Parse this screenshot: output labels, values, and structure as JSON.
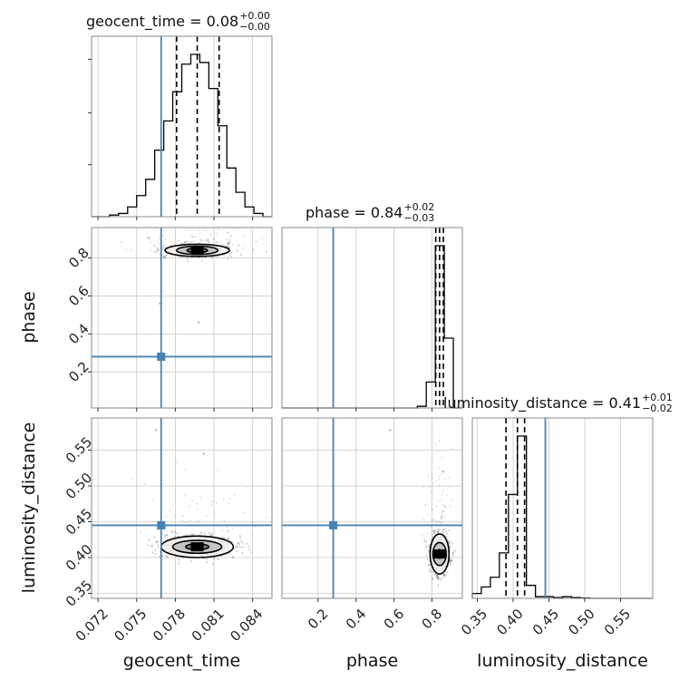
{
  "chart_data": {
    "type": "corner",
    "truth_color": "#4682b4",
    "grid": true,
    "parameters": [
      {
        "name": "geocent_time",
        "xlabel": "geocent_time",
        "ylabel": "",
        "title": {
          "main": "geocent_time = 0.08",
          "plus": "+0.00",
          "minus": "−0.00"
        },
        "range": [
          0.0715,
          0.0855
        ],
        "ticks": [
          0.072,
          0.075,
          0.078,
          0.081,
          0.084
        ],
        "tick_labels": [
          "0.072",
          "0.075",
          "0.078",
          "0.081",
          "0.084"
        ],
        "truth": 0.0769,
        "quantiles": [
          0.0781,
          0.0797,
          0.0814
        ],
        "hist": {
          "bins": [
            0.0715,
            0.0722,
            0.0729,
            0.0736,
            0.0743,
            0.075,
            0.0757,
            0.0764,
            0.0771,
            0.0778,
            0.0785,
            0.0792,
            0.0799,
            0.0806,
            0.0813,
            0.082,
            0.0827,
            0.0834,
            0.0841,
            0.0848,
            0.0855
          ],
          "counts": [
            0.0,
            0.0,
            0.01,
            0.02,
            0.06,
            0.13,
            0.23,
            0.41,
            0.59,
            0.77,
            0.94,
            1.0,
            0.95,
            0.79,
            0.56,
            0.3,
            0.15,
            0.06,
            0.02,
            0.0
          ]
        }
      },
      {
        "name": "phase",
        "xlabel": "phase",
        "ylabel": "phase",
        "title": {
          "main": "phase = 0.84",
          "plus": "+0.02",
          "minus": "−0.03"
        },
        "range": [
          0.01,
          0.96
        ],
        "ticks": [
          0.2,
          0.4,
          0.6,
          0.8
        ],
        "tick_labels": [
          "0.2",
          "0.4",
          "0.6",
          "0.8"
        ],
        "truth": 0.28,
        "quantiles": [
          0.82,
          0.84,
          0.86
        ],
        "hist": {
          "bins": [
            0.01,
            0.0575,
            0.105,
            0.1525,
            0.2,
            0.2475,
            0.295,
            0.3425,
            0.39,
            0.4375,
            0.485,
            0.5325,
            0.58,
            0.6275,
            0.675,
            0.7225,
            0.77,
            0.8175,
            0.865,
            0.9125,
            0.96
          ],
          "counts": [
            0,
            0,
            0,
            0,
            0,
            0,
            0,
            0,
            0,
            0,
            0,
            0,
            0,
            0,
            0,
            0.01,
            0.16,
            1.0,
            0.43,
            0
          ]
        }
      },
      {
        "name": "luminosity_distance",
        "xlabel": "luminosity_distance",
        "ylabel": "luminosity_distance",
        "title": {
          "main": "luminosity_distance = 0.41",
          "plus": "+0.01",
          "minus": "−0.02"
        },
        "range": [
          0.343,
          0.595
        ],
        "ticks": [
          0.35,
          0.4,
          0.45,
          0.5,
          0.55
        ],
        "tick_labels": [
          "0.35",
          "0.40",
          "0.45",
          "0.50",
          "0.55"
        ],
        "truth": 0.445,
        "quantiles": [
          0.39,
          0.406,
          0.416
        ],
        "hist": {
          "bins": [
            0.343,
            0.3556,
            0.3682,
            0.3808,
            0.3934,
            0.406,
            0.4186,
            0.4312,
            0.4438,
            0.4564,
            0.469,
            0.4816,
            0.4942,
            0.5068,
            0.5194,
            0.532,
            0.5446,
            0.5572,
            0.5698,
            0.5824,
            0.595
          ],
          "counts": [
            0.03,
            0.07,
            0.13,
            0.28,
            0.64,
            1.0,
            0.08,
            0.01,
            0.01,
            0.005,
            0.01,
            0.005,
            0.002,
            0,
            0,
            0,
            0,
            0,
            0,
            0
          ]
        }
      }
    ],
    "pairs": [
      {
        "x": "geocent_time",
        "y": "phase",
        "density_center": [
          0.0797,
          0.84
        ],
        "contours": [
          {
            "level": 1,
            "rx": 0.0008,
            "ry": 0.012
          },
          {
            "level": 2,
            "rx": 0.0016,
            "ry": 0.022
          },
          {
            "level": 3,
            "rx": 0.0025,
            "ry": 0.032
          }
        ],
        "outliers": [
          [
            0.0768,
            0.56
          ],
          [
            0.0798,
            0.46
          ]
        ]
      },
      {
        "x": "geocent_time",
        "y": "luminosity_distance",
        "density_center": [
          0.0797,
          0.415
        ],
        "contours": [
          {
            "level": 1,
            "rx": 0.0009,
            "ry": 0.004
          },
          {
            "level": 2,
            "rx": 0.0019,
            "ry": 0.009
          },
          {
            "level": 3,
            "rx": 0.0028,
            "ry": 0.015
          }
        ],
        "outliers": [
          [
            0.0765,
            0.578
          ],
          [
            0.0802,
            0.545
          ]
        ]
      },
      {
        "x": "phase",
        "y": "luminosity_distance",
        "density_center": [
          0.84,
          0.405
        ],
        "contours": [
          {
            "level": 1,
            "rx": 0.015,
            "ry": 0.006
          },
          {
            "level": 2,
            "rx": 0.035,
            "ry": 0.016
          },
          {
            "level": 3,
            "rx": 0.05,
            "ry": 0.028
          }
        ],
        "outliers": [
          [
            0.58,
            0.578
          ],
          [
            0.86,
            0.52
          ]
        ]
      }
    ]
  }
}
